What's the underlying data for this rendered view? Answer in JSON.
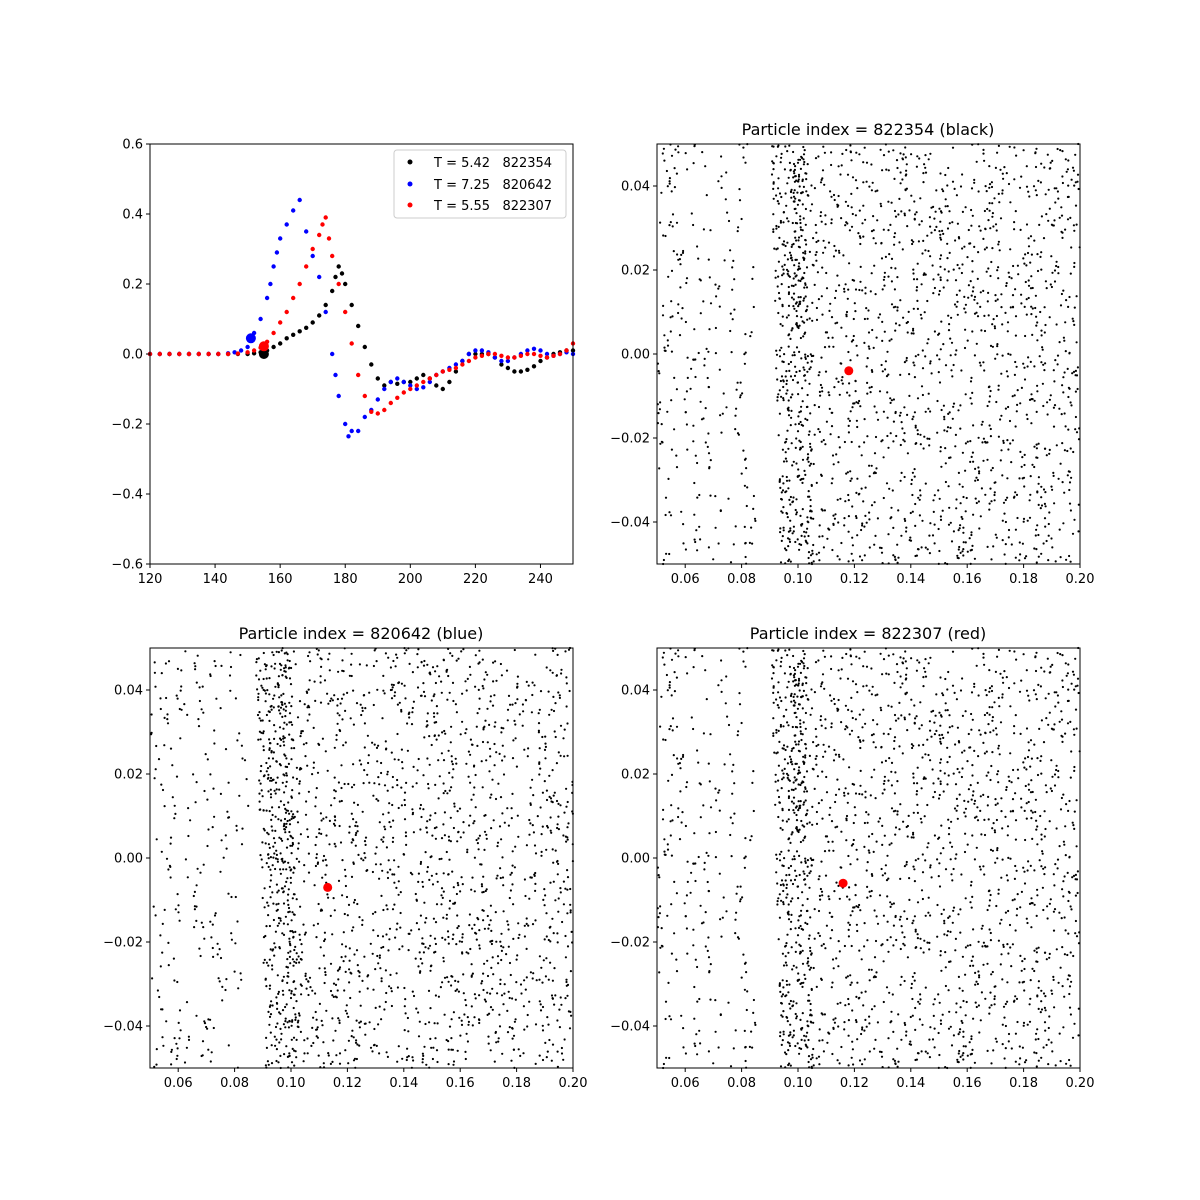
{
  "chart_data": [
    {
      "type": "scatter",
      "panel": "top-left",
      "title": "",
      "xlabel": "",
      "ylabel": "",
      "xlim": [
        120,
        250
      ],
      "ylim": [
        -0.6,
        0.6
      ],
      "xticks": [
        "120",
        "140",
        "160",
        "180",
        "200",
        "220",
        "240"
      ],
      "yticks": [
        "0.6",
        "0.4",
        "0.2",
        "0.0",
        "−0.2",
        "−0.4",
        "−0.6"
      ],
      "grid": false,
      "legend_position": "upper-right",
      "series": [
        {
          "name": "T = 5.42   822354",
          "color": "#000000",
          "highlight": [
            155,
            0.0
          ],
          "points": [
            [
              120,
              0
            ],
            [
              123,
              0
            ],
            [
              126,
              0
            ],
            [
              129,
              0
            ],
            [
              132,
              0
            ],
            [
              135,
              0
            ],
            [
              138,
              0
            ],
            [
              141,
              0
            ],
            [
              144,
              0
            ],
            [
              147,
              0
            ],
            [
              150,
              0
            ],
            [
              152,
              0.002
            ],
            [
              154,
              0.005
            ],
            [
              156,
              0.01
            ],
            [
              158,
              0.02
            ],
            [
              160,
              0.03
            ],
            [
              162,
              0.045
            ],
            [
              164,
              0.055
            ],
            [
              166,
              0.065
            ],
            [
              168,
              0.075
            ],
            [
              170,
              0.09
            ],
            [
              172,
              0.11
            ],
            [
              174,
              0.14
            ],
            [
              176,
              0.18
            ],
            [
              177,
              0.22
            ],
            [
              178,
              0.25
            ],
            [
              179,
              0.23
            ],
            [
              180,
              0.2
            ],
            [
              182,
              0.14
            ],
            [
              184,
              0.08
            ],
            [
              186,
              0.02
            ],
            [
              188,
              -0.03
            ],
            [
              190,
              -0.07
            ],
            [
              192,
              -0.09
            ],
            [
              194,
              -0.08
            ],
            [
              196,
              -0.085
            ],
            [
              198,
              -0.08
            ],
            [
              200,
              -0.08
            ],
            [
              202,
              -0.07
            ],
            [
              204,
              -0.06
            ],
            [
              206,
              -0.07
            ],
            [
              208,
              -0.09
            ],
            [
              210,
              -0.1
            ],
            [
              212,
              -0.08
            ],
            [
              214,
              -0.05
            ],
            [
              216,
              -0.02
            ],
            [
              218,
              0.0
            ],
            [
              220,
              0.0
            ],
            [
              222,
              0.0
            ],
            [
              224,
              0.0
            ],
            [
              226,
              -0.01
            ],
            [
              228,
              -0.03
            ],
            [
              230,
              -0.04
            ],
            [
              232,
              -0.05
            ],
            [
              234,
              -0.05
            ],
            [
              236,
              -0.045
            ],
            [
              238,
              -0.035
            ],
            [
              240,
              -0.02
            ],
            [
              242,
              -0.01
            ],
            [
              244,
              0.0
            ],
            [
              246,
              0.005
            ],
            [
              248,
              0.01
            ],
            [
              250,
              0.01
            ]
          ]
        },
        {
          "name": "T = 7.25   820642",
          "color": "#0000ff",
          "highlight": [
            151,
            0.045
          ],
          "points": [
            [
              120,
              0
            ],
            [
              123,
              0
            ],
            [
              126,
              0
            ],
            [
              129,
              0
            ],
            [
              132,
              0
            ],
            [
              135,
              0
            ],
            [
              138,
              0
            ],
            [
              141,
              0
            ],
            [
              144,
              0.002
            ],
            [
              146,
              0.005
            ],
            [
              148,
              0.01
            ],
            [
              150,
              0.02
            ],
            [
              151,
              0.045
            ],
            [
              152,
              0.06
            ],
            [
              154,
              0.1
            ],
            [
              156,
              0.16
            ],
            [
              157,
              0.2
            ],
            [
              158,
              0.25
            ],
            [
              159,
              0.29
            ],
            [
              160,
              0.33
            ],
            [
              162,
              0.37
            ],
            [
              164,
              0.41
            ],
            [
              166,
              0.44
            ],
            [
              168,
              0.35
            ],
            [
              170,
              0.28
            ],
            [
              172,
              0.22
            ],
            [
              174,
              0.12
            ],
            [
              176,
              0.0
            ],
            [
              177,
              -0.06
            ],
            [
              178,
              -0.12
            ],
            [
              180,
              -0.2
            ],
            [
              181,
              -0.235
            ],
            [
              182,
              -0.22
            ],
            [
              184,
              -0.22
            ],
            [
              186,
              -0.18
            ],
            [
              188,
              -0.16
            ],
            [
              190,
              -0.13
            ],
            [
              192,
              -0.1
            ],
            [
              194,
              -0.08
            ],
            [
              196,
              -0.07
            ],
            [
              198,
              -0.08
            ],
            [
              200,
              -0.09
            ],
            [
              202,
              -0.1
            ],
            [
              204,
              -0.095
            ],
            [
              206,
              -0.08
            ],
            [
              208,
              -0.06
            ],
            [
              210,
              -0.05
            ],
            [
              212,
              -0.04
            ],
            [
              214,
              -0.03
            ],
            [
              216,
              -0.02
            ],
            [
              218,
              0.0
            ],
            [
              220,
              0.01
            ],
            [
              222,
              0.01
            ],
            [
              224,
              0.005
            ],
            [
              226,
              -0.01
            ],
            [
              228,
              -0.02
            ],
            [
              230,
              -0.02
            ],
            [
              232,
              -0.01
            ],
            [
              234,
              0.0
            ],
            [
              236,
              0.01
            ],
            [
              238,
              0.015
            ],
            [
              240,
              0.01
            ],
            [
              242,
              0.0
            ],
            [
              244,
              -0.005
            ],
            [
              246,
              0.0
            ],
            [
              248,
              0.005
            ],
            [
              250,
              0.0
            ]
          ]
        },
        {
          "name": "T = 5.55   822307",
          "color": "#ff0000",
          "highlight": [
            155,
            0.022
          ],
          "points": [
            [
              120,
              0
            ],
            [
              123,
              0
            ],
            [
              126,
              0
            ],
            [
              129,
              0
            ],
            [
              132,
              0
            ],
            [
              135,
              0
            ],
            [
              138,
              0
            ],
            [
              141,
              0
            ],
            [
              144,
              0
            ],
            [
              147,
              0.001
            ],
            [
              150,
              0.005
            ],
            [
              152,
              0.01
            ],
            [
              154,
              0.018
            ],
            [
              155,
              0.022
            ],
            [
              156,
              0.035
            ],
            [
              158,
              0.06
            ],
            [
              160,
              0.09
            ],
            [
              162,
              0.12
            ],
            [
              164,
              0.16
            ],
            [
              166,
              0.2
            ],
            [
              168,
              0.25
            ],
            [
              170,
              0.3
            ],
            [
              172,
              0.34
            ],
            [
              173,
              0.37
            ],
            [
              174,
              0.39
            ],
            [
              175,
              0.33
            ],
            [
              176,
              0.28
            ],
            [
              178,
              0.2
            ],
            [
              180,
              0.12
            ],
            [
              182,
              0.03
            ],
            [
              184,
              -0.06
            ],
            [
              186,
              -0.12
            ],
            [
              188,
              -0.165
            ],
            [
              190,
              -0.17
            ],
            [
              192,
              -0.16
            ],
            [
              194,
              -0.14
            ],
            [
              196,
              -0.125
            ],
            [
              198,
              -0.11
            ],
            [
              200,
              -0.1
            ],
            [
              202,
              -0.09
            ],
            [
              204,
              -0.08
            ],
            [
              206,
              -0.07
            ],
            [
              208,
              -0.06
            ],
            [
              210,
              -0.05
            ],
            [
              212,
              -0.045
            ],
            [
              214,
              -0.04
            ],
            [
              216,
              -0.03
            ],
            [
              218,
              -0.02
            ],
            [
              220,
              -0.01
            ],
            [
              222,
              -0.005
            ],
            [
              224,
              0.0
            ],
            [
              226,
              0.0
            ],
            [
              228,
              -0.005
            ],
            [
              230,
              -0.01
            ],
            [
              232,
              -0.01
            ],
            [
              234,
              -0.005
            ],
            [
              236,
              0.0
            ],
            [
              238,
              0.0
            ],
            [
              240,
              -0.005
            ],
            [
              242,
              -0.01
            ],
            [
              244,
              -0.005
            ],
            [
              246,
              0.0
            ],
            [
              248,
              0.01
            ],
            [
              250,
              0.03
            ]
          ]
        }
      ]
    },
    {
      "type": "scatter",
      "panel": "top-right",
      "title": "Particle index = 822354 (black)",
      "xlim": [
        0.05,
        0.2
      ],
      "ylim": [
        -0.05,
        0.05
      ],
      "xticks": [
        "0.06",
        "0.08",
        "0.10",
        "0.12",
        "0.14",
        "0.16",
        "0.18",
        "0.20"
      ],
      "yticks": [
        "0.04",
        "0.02",
        "0.00",
        "−0.02",
        "−0.04"
      ],
      "background_points": {
        "color": "#000000",
        "shock_front_x": 0.097,
        "shock_front_y_slope": -0.05,
        "count_dense": 420,
        "count_post": 1500,
        "count_pre": 260,
        "seed": 7
      },
      "highlight": {
        "x": 0.118,
        "y": -0.004,
        "color": "#ff0000"
      }
    },
    {
      "type": "scatter",
      "panel": "bottom-left",
      "title": "Particle index = 820642 (blue)",
      "xlim": [
        0.05,
        0.2
      ],
      "ylim": [
        -0.05,
        0.05
      ],
      "xticks": [
        "0.06",
        "0.08",
        "0.10",
        "0.12",
        "0.14",
        "0.16",
        "0.18",
        "0.20"
      ],
      "yticks": [
        "0.04",
        "0.02",
        "0.00",
        "−0.02",
        "−0.04"
      ],
      "background_points": {
        "color": "#000000",
        "shock_front_x": 0.094,
        "shock_front_y_slope": -0.06,
        "count_dense": 420,
        "count_post": 1550,
        "count_pre": 230,
        "seed": 11
      },
      "highlight": {
        "x": 0.113,
        "y": -0.007,
        "color": "#ff0000"
      }
    },
    {
      "type": "scatter",
      "panel": "bottom-right",
      "title": "Particle index = 822307 (red)",
      "xlim": [
        0.05,
        0.2
      ],
      "ylim": [
        -0.05,
        0.05
      ],
      "xticks": [
        "0.06",
        "0.08",
        "0.10",
        "0.12",
        "0.14",
        "0.16",
        "0.18",
        "0.20"
      ],
      "yticks": [
        "0.04",
        "0.02",
        "0.00",
        "−0.02",
        "−0.04"
      ],
      "background_points": {
        "color": "#000000",
        "shock_front_x": 0.097,
        "shock_front_y_slope": -0.05,
        "count_dense": 420,
        "count_post": 1500,
        "count_pre": 260,
        "seed": 7
      },
      "highlight": {
        "x": 0.116,
        "y": -0.006,
        "color": "#ff0000"
      }
    }
  ]
}
